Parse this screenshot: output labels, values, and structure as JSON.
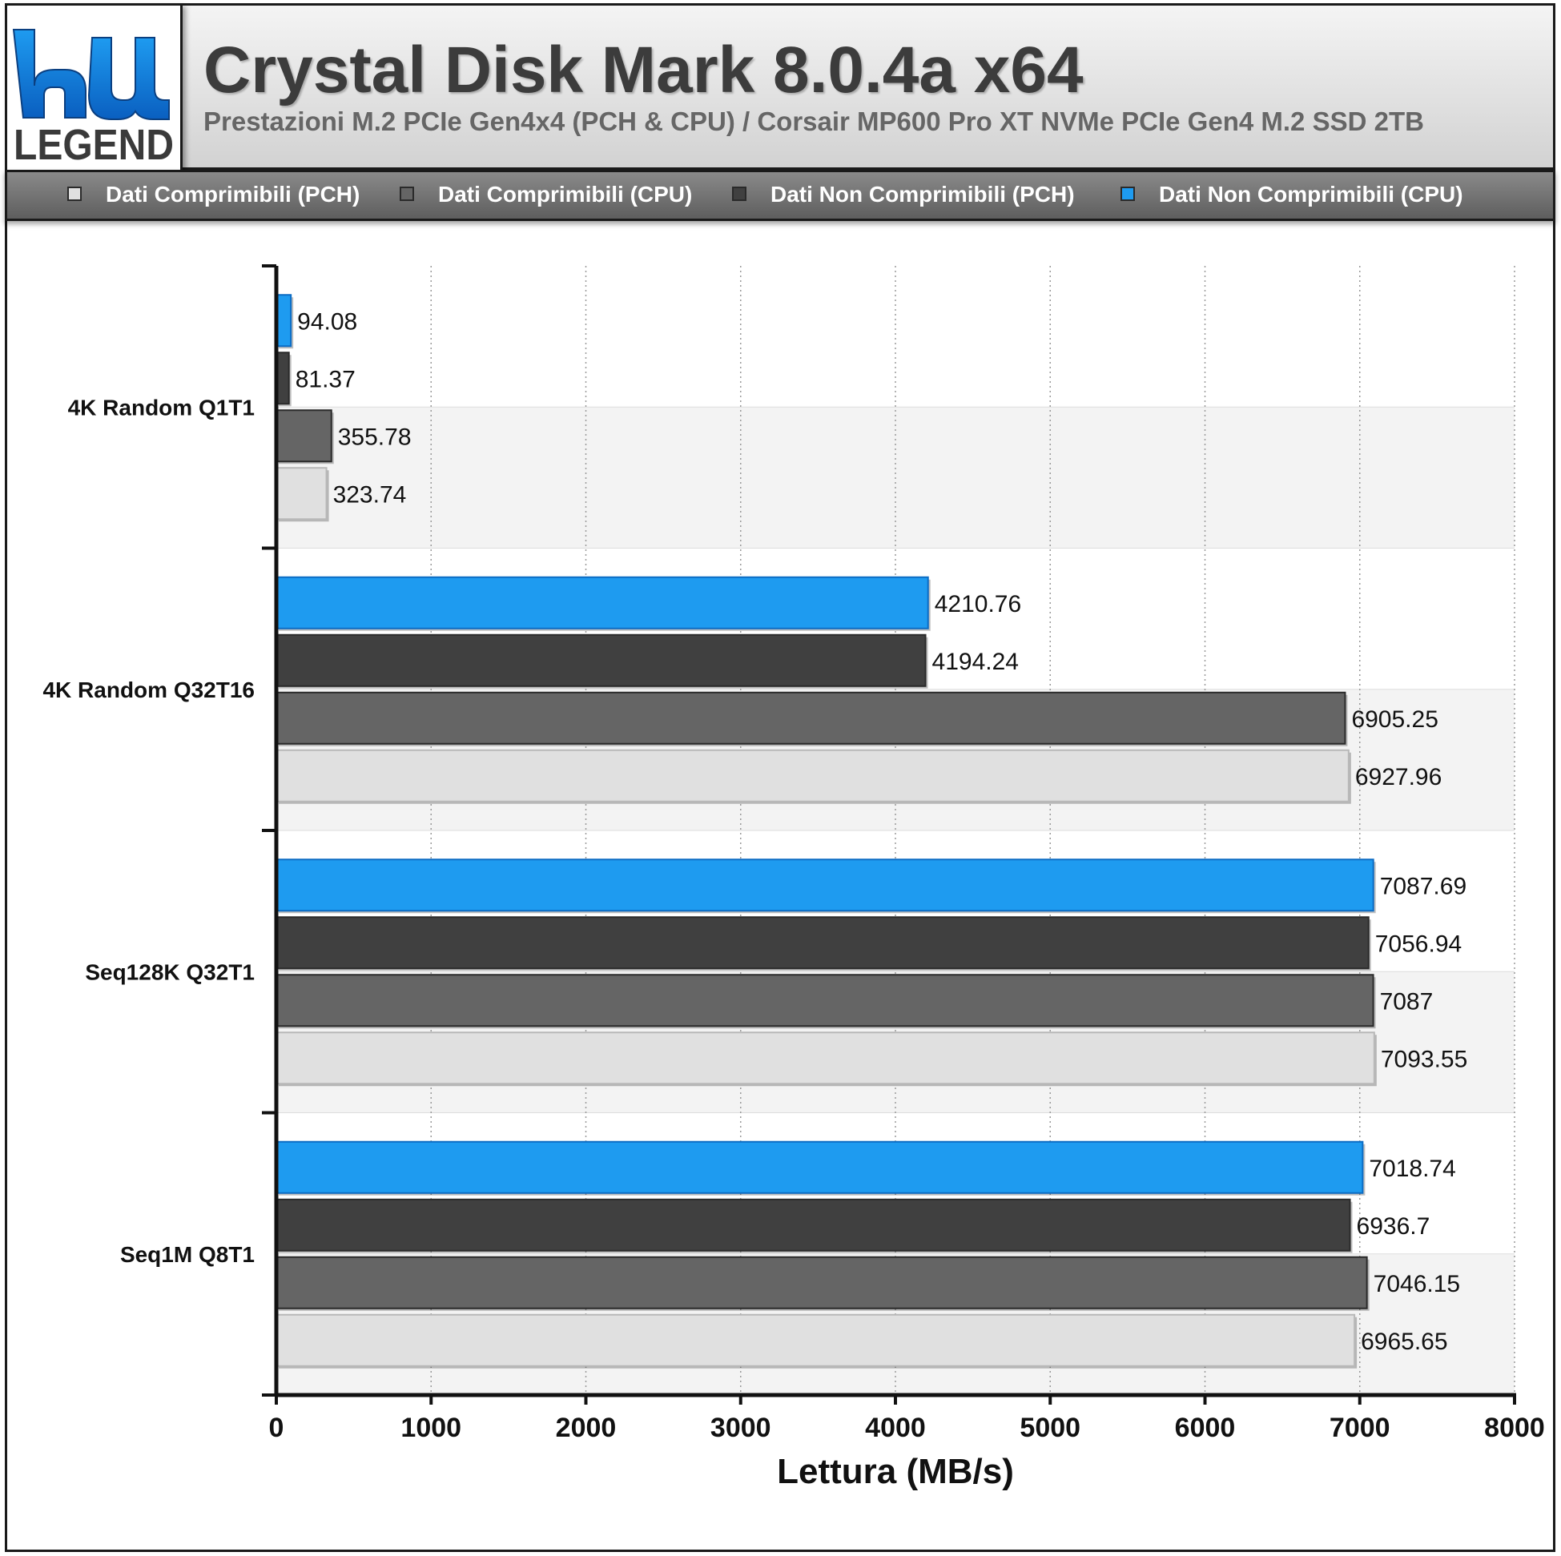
{
  "header": {
    "title": "Crystal Disk Mark 8.0.4a x64",
    "subtitle": "Prestazioni M.2 PCIe Gen4x4 (PCH & CPU) / Corsair MP600 Pro XT NVMe PCIe Gen4 M.2 SSD 2TB"
  },
  "logo": {
    "text": "LEGEND",
    "icon": "hwlegend-logo-icon"
  },
  "legend": [
    {
      "label": "Dati Comprimibili (PCH)",
      "color": "#e0e0e0"
    },
    {
      "label": "Dati Comprimibili (CPU)",
      "color": "#656565"
    },
    {
      "label": "Dati Non Comprimibili (PCH)",
      "color": "#404040"
    },
    {
      "label": "Dati Non Comprimibili (CPU)",
      "color": "#1e9bf0"
    }
  ],
  "chart_data": {
    "type": "bar",
    "orientation": "horizontal",
    "categories": [
      "4K Random Q1T1",
      "4K Random Q32T16",
      "Seq128K Q32T1",
      "Seq1M Q8T1"
    ],
    "series": [
      {
        "name": "Dati Non Comprimibili (CPU)",
        "color": "#1e9bf0",
        "values": [
          94.08,
          4210.76,
          7087.69,
          7018.74
        ],
        "value_labels": [
          "94.08",
          "4210.76",
          "7087.69",
          "7018.74"
        ]
      },
      {
        "name": "Dati Non Comprimibili (PCH)",
        "color": "#404040",
        "values": [
          81.37,
          4194.24,
          7056.94,
          6936.7
        ],
        "value_labels": [
          "81.37",
          "4194.24",
          "7056.94",
          "6936.7"
        ]
      },
      {
        "name": "Dati Comprimibili (CPU)",
        "color": "#656565",
        "values": [
          355.78,
          6905.25,
          7087,
          7046.15
        ],
        "value_labels": [
          "355.78",
          "6905.25",
          "7087",
          "7046.15"
        ]
      },
      {
        "name": "Dati Comprimibili (PCH)",
        "color": "#e0e0e0",
        "values": [
          323.74,
          6927.96,
          7093.55,
          6965.65
        ],
        "value_labels": [
          "323.74",
          "6927.96",
          "7093.55",
          "6965.65"
        ]
      }
    ],
    "xlabel": "Lettura (MB/s)",
    "xlim": [
      0,
      8000
    ],
    "xticks": [
      0,
      1000,
      2000,
      3000,
      4000,
      5000,
      6000,
      7000,
      8000
    ],
    "xtick_labels": [
      "0",
      "1000",
      "2000",
      "3000",
      "4000",
      "5000",
      "6000",
      "7000",
      "8000"
    ],
    "grid": "vertical-dotted",
    "legend_position": "top"
  }
}
